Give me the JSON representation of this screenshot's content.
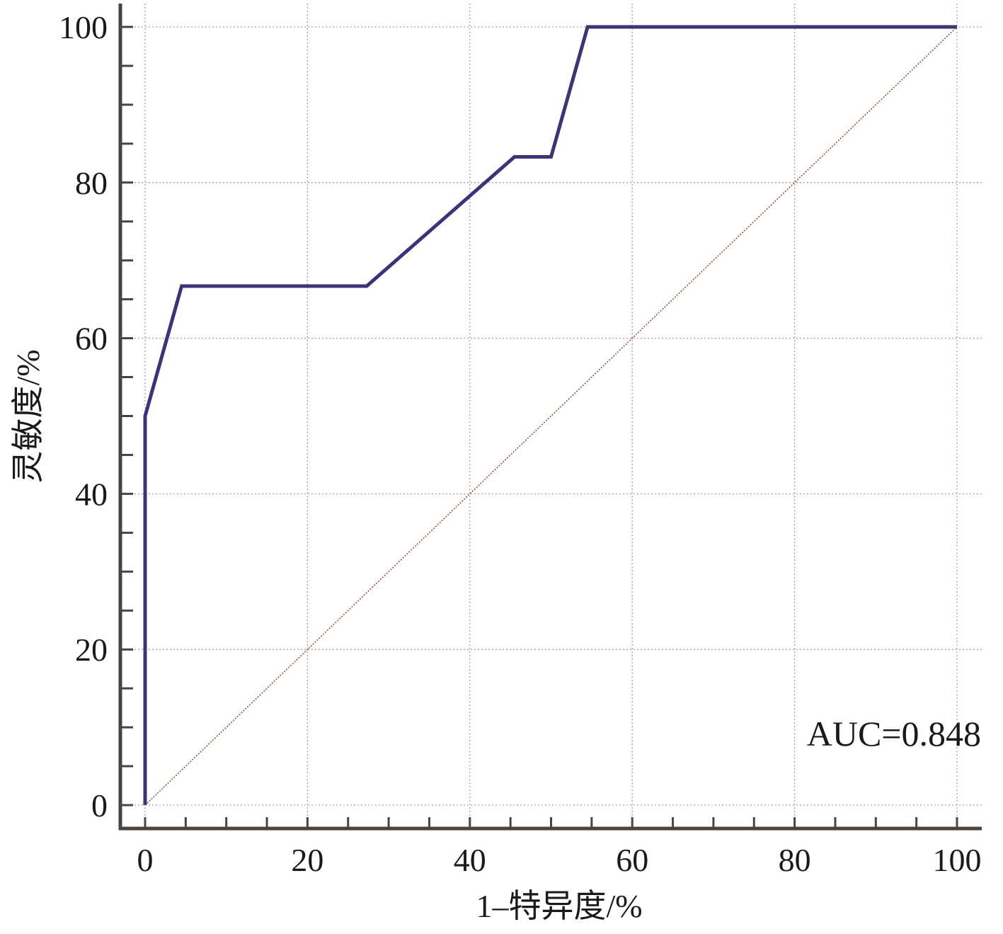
{
  "chart_data": {
    "type": "line",
    "title": "",
    "xlabel": "1–特异度/%",
    "ylabel": "灵敏度/%",
    "xlim": [
      0,
      100
    ],
    "ylim": [
      0,
      100
    ],
    "xticks": [
      0,
      20,
      40,
      60,
      80,
      100
    ],
    "yticks": [
      0,
      20,
      40,
      60,
      80,
      100
    ],
    "grid": true,
    "series": [
      {
        "name": "ROC",
        "color": "#3d3378",
        "x": [
          0,
          0,
          4.5,
          27.3,
          45.5,
          50.0,
          54.5,
          100
        ],
        "y": [
          0,
          50.0,
          66.7,
          66.7,
          83.3,
          83.3,
          100,
          100
        ]
      },
      {
        "name": "reference",
        "color": "#8b4a2b",
        "style": "dotted",
        "x": [
          0,
          100
        ],
        "y": [
          0,
          100
        ]
      }
    ],
    "annotations": [
      {
        "text": "AUC=0.848",
        "position": "bottom-right"
      }
    ]
  }
}
